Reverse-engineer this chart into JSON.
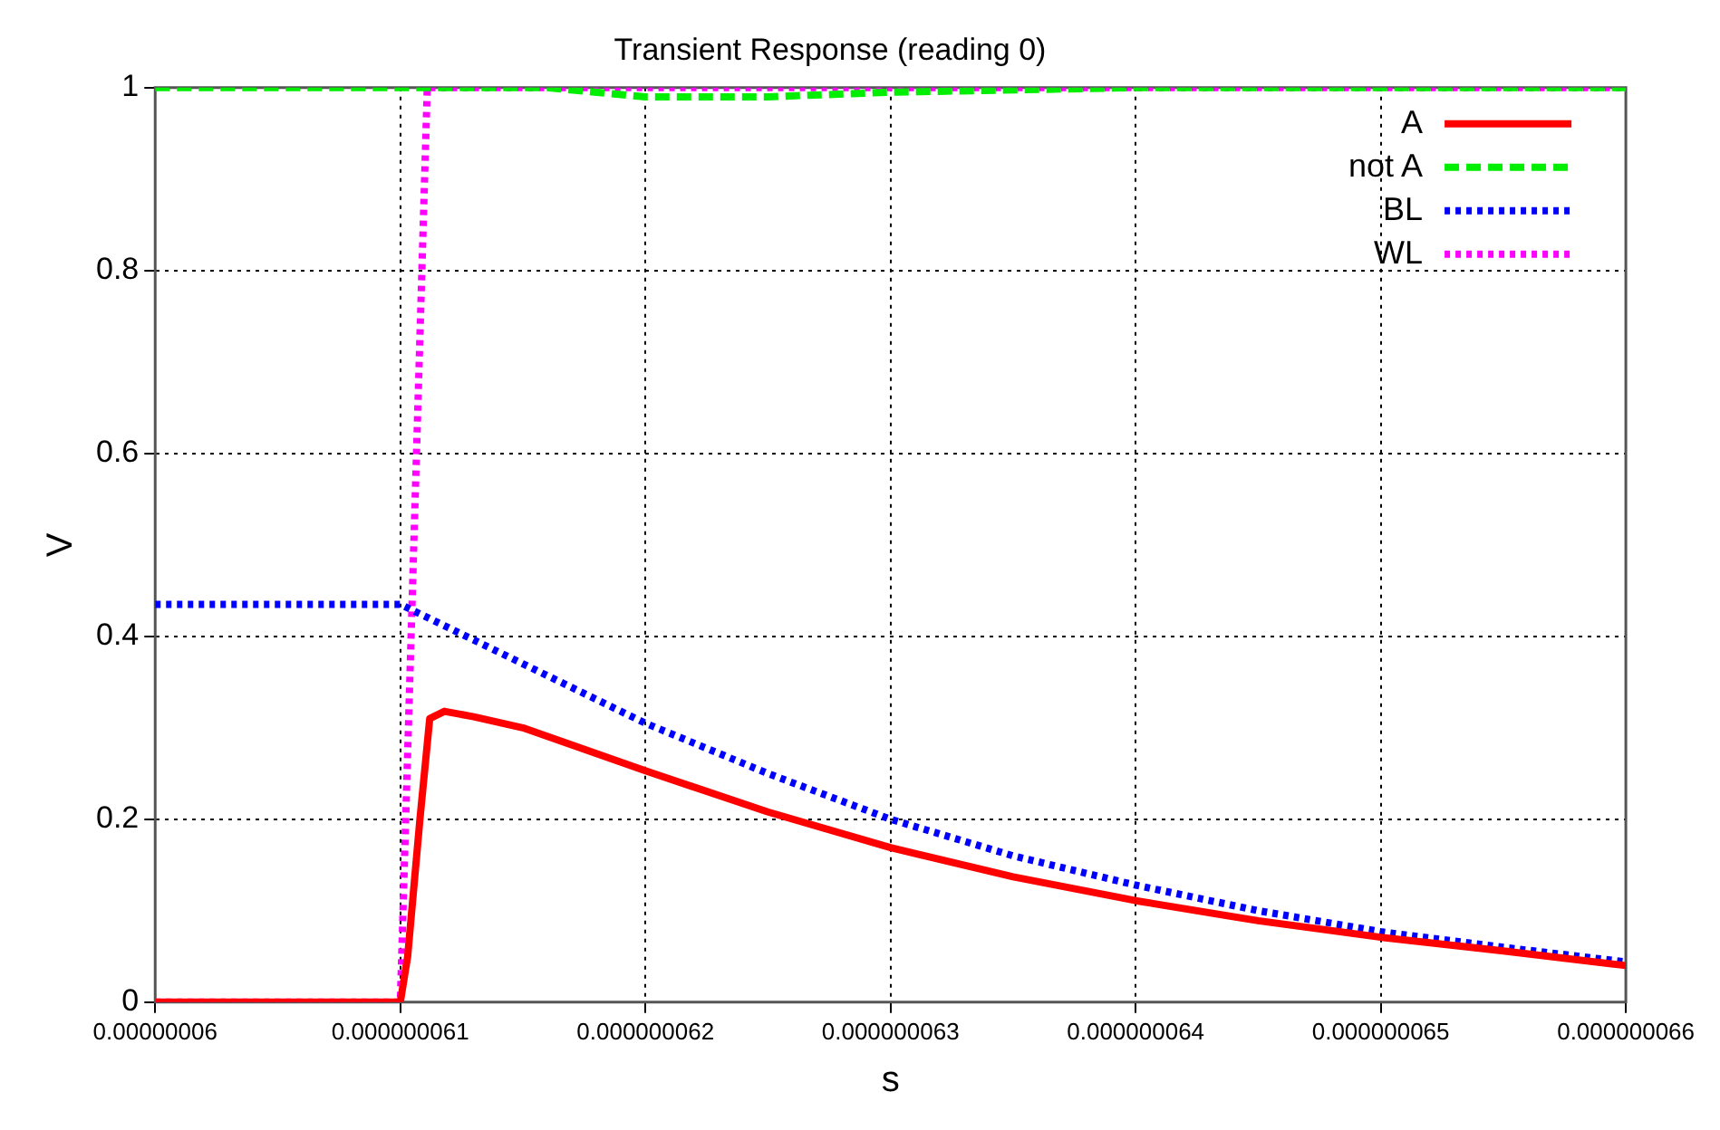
{
  "chart_data": {
    "type": "line",
    "title": "Transient Response (reading 0)",
    "xlabel": "s",
    "ylabel": "V",
    "xlim": [
      6e-08,
      6.6e-08
    ],
    "xticks": [
      {
        "value": 6e-08,
        "label": "0.00000006"
      },
      {
        "value": 6.1e-08,
        "label": "0.000000061"
      },
      {
        "value": 6.2e-08,
        "label": "0.000000062"
      },
      {
        "value": 6.3e-08,
        "label": "0.000000063"
      },
      {
        "value": 6.4e-08,
        "label": "0.000000064"
      },
      {
        "value": 6.5e-08,
        "label": "0.000000065"
      },
      {
        "value": 6.6e-08,
        "label": "0.000000066"
      }
    ],
    "ylim": [
      0,
      1
    ],
    "yticks": [
      0,
      0.2,
      0.4,
      0.6,
      0.8,
      1
    ],
    "grid": true,
    "legend": "top right",
    "series": [
      {
        "name": "A",
        "color": "#ff0000",
        "line_style": "solid",
        "x": [
          6e-08,
          6.1e-08,
          6.103e-08,
          6.108e-08,
          6.112e-08,
          6.118e-08,
          6.13e-08,
          6.15e-08,
          6.2e-08,
          6.25e-08,
          6.3e-08,
          6.35e-08,
          6.4e-08,
          6.45e-08,
          6.5e-08,
          6.55e-08,
          6.6e-08
        ],
        "values": [
          0,
          0,
          0.05,
          0.2,
          0.31,
          0.318,
          0.312,
          0.3,
          0.253,
          0.208,
          0.169,
          0.137,
          0.111,
          0.089,
          0.071,
          0.056,
          0.04
        ]
      },
      {
        "name": "not A",
        "color": "#00ee00",
        "line_style": "dashed",
        "x": [
          6e-08,
          6.1e-08,
          6.145e-08,
          6.16e-08,
          6.2e-08,
          6.25e-08,
          6.3e-08,
          6.4e-08,
          6.5e-08,
          6.6e-08
        ],
        "values": [
          1,
          1,
          1,
          1.0,
          0.99,
          0.99,
          0.995,
          1,
          1,
          1
        ]
      },
      {
        "name": "BL",
        "color": "#0000ff",
        "line_style": "dotted",
        "x": [
          6e-08,
          6.1e-08,
          6.15e-08,
          6.2e-08,
          6.25e-08,
          6.3e-08,
          6.35e-08,
          6.4e-08,
          6.45e-08,
          6.5e-08,
          6.55e-08,
          6.6e-08
        ],
        "values": [
          0.435,
          0.435,
          0.37,
          0.305,
          0.25,
          0.2,
          0.16,
          0.128,
          0.1,
          0.077,
          0.06,
          0.044
        ]
      },
      {
        "name": "WL",
        "color": "#ff00ff",
        "line_style": "dotted",
        "x": [
          6e-08,
          6.1e-08,
          6.111e-08,
          6.2e-08,
          6.6e-08
        ],
        "values": [
          0,
          0,
          1,
          1,
          1
        ]
      }
    ]
  }
}
